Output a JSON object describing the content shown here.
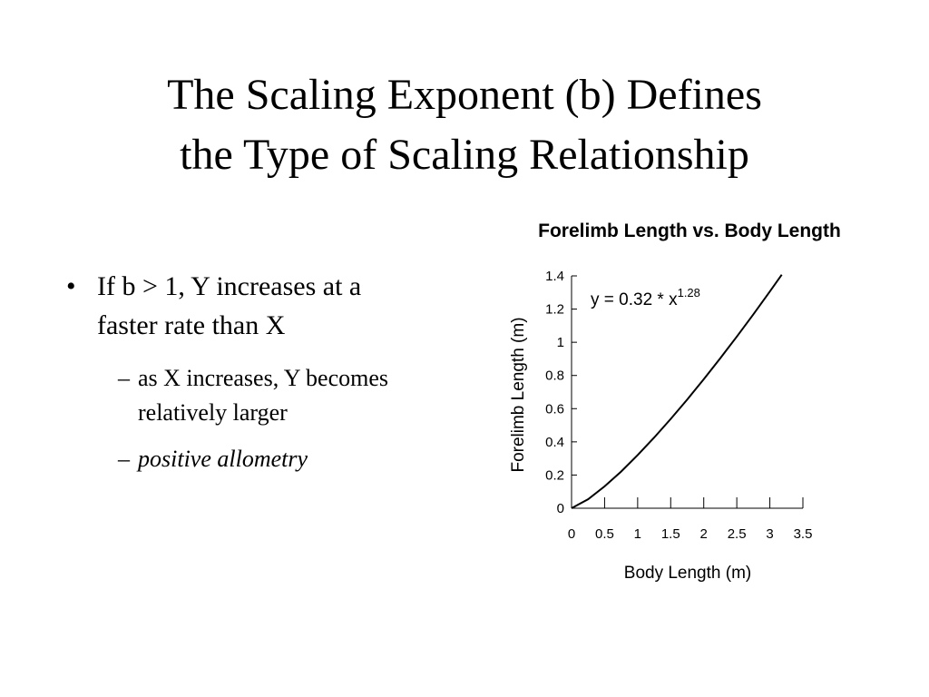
{
  "slide": {
    "title_lines": [
      "The Scaling Exponent (b) Defines",
      "the Type of Scaling Relationship"
    ],
    "bullets": [
      {
        "marker": "•",
        "lines": [
          "If b > 1, Y increases at a",
          "faster rate than X"
        ],
        "sub": [
          {
            "marker": "–",
            "lines": [
              "as X increases, Y becomes",
              "relatively larger"
            ],
            "italic": false
          },
          {
            "marker": "–",
            "lines": [
              "positive allometry"
            ],
            "italic": true
          }
        ]
      }
    ]
  },
  "chart_data": {
    "type": "line",
    "title": "Forelimb Length vs. Body Length",
    "x_label": "Body Length (m)",
    "y_label": "Forelimb Length (m)",
    "annotation": {
      "text": "y = 0.32 * x",
      "superscript": "1.28"
    },
    "x": [
      0,
      0.25,
      0.5,
      0.75,
      1,
      1.25,
      1.5,
      1.75,
      2,
      2.25,
      2.5,
      2.75,
      3,
      3.18
    ],
    "values": [
      0,
      0.054,
      0.132,
      0.221,
      0.32,
      0.426,
      0.538,
      0.655,
      0.777,
      0.904,
      1.034,
      1.168,
      1.306,
      1.407
    ],
    "color": "#000000",
    "xlim": [
      0,
      3.5
    ],
    "xticks": [
      0,
      0.5,
      1,
      1.5,
      2,
      2.5,
      3,
      3.5
    ],
    "ylim": [
      0,
      1.4
    ],
    "yticks": [
      0,
      0.2,
      0.4,
      0.6,
      0.8,
      1,
      1.2,
      1.4
    ],
    "grid": false
  }
}
